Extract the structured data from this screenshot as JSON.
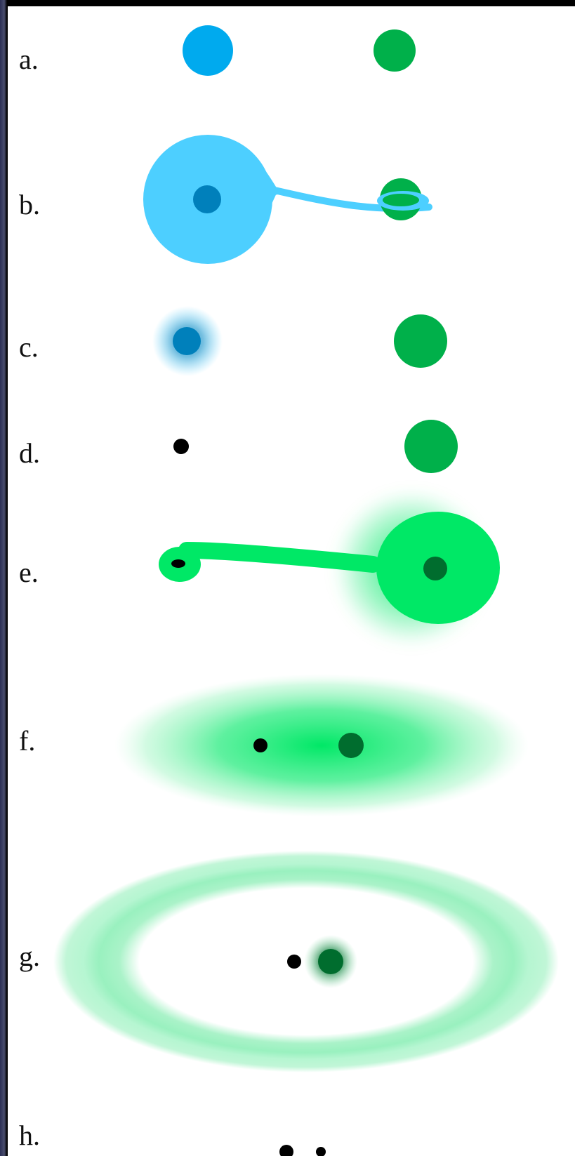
{
  "stages": [
    {
      "label": "a."
    },
    {
      "label": "b."
    },
    {
      "label": "c."
    },
    {
      "label": "d."
    },
    {
      "label": "e."
    },
    {
      "label": "f."
    },
    {
      "label": "g."
    },
    {
      "label": "h."
    }
  ],
  "colors": {
    "background": "#ffffff",
    "frame": "#000000",
    "blue_star": "#00aaee",
    "blue_envelope": "#4dcfff",
    "blue_core": "#0080bb",
    "green_star": "#00b04a",
    "green_envelope": "#00e866",
    "green_core": "#006d2e",
    "green_disk": "#a6f2c6",
    "compact_object": "#000000"
  }
}
